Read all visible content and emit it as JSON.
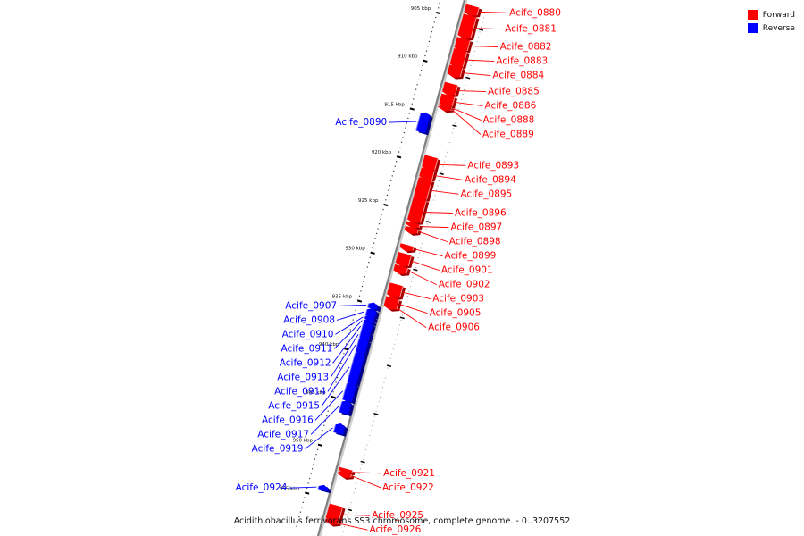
{
  "caption": "Acidithiobacillus ferrivorans SS3 chromosome, complete genome. - 0..3207552",
  "legend": [
    {
      "label": "Forward",
      "color": "#ff0000"
    },
    {
      "label": "Reverse",
      "color": "#0000ff"
    }
  ],
  "colors": {
    "forward": "#ff0000",
    "reverse": "#0000ff",
    "backbone": "#808080"
  },
  "ticks": [
    {
      "kbp": 905,
      "label": "905 kbp"
    },
    {
      "kbp": 910,
      "label": "910 kbp"
    },
    {
      "kbp": 915,
      "label": "915 kbp"
    },
    {
      "kbp": 920,
      "label": "920 kbp"
    },
    {
      "kbp": 925,
      "label": "925 kbp"
    },
    {
      "kbp": 930,
      "label": "930 kbp"
    },
    {
      "kbp": 935,
      "label": "935 kbp"
    },
    {
      "kbp": 940,
      "label": "940 kbp"
    },
    {
      "kbp": 945,
      "label": "945 kbp"
    },
    {
      "kbp": 950,
      "label": "950 kbp"
    },
    {
      "kbp": 955,
      "label": "955 kbp"
    }
  ],
  "genes": [
    {
      "name": "Acife_0880",
      "strand": "forward",
      "start": 903.4,
      "end": 904.2
    },
    {
      "name": "Acife_0881",
      "strand": "forward",
      "start": 904.4,
      "end": 906.6
    },
    {
      "name": "Acife_0882",
      "strand": "forward",
      "start": 906.8,
      "end": 907.9
    },
    {
      "name": "Acife_0883",
      "strand": "forward",
      "start": 908.0,
      "end": 909.6
    },
    {
      "name": "Acife_0884",
      "strand": "forward",
      "start": 909.7,
      "end": 910.6
    },
    {
      "name": "Acife_0885",
      "strand": "forward",
      "start": 911.5,
      "end": 912.5
    },
    {
      "name": "Acife_0886",
      "strand": "forward",
      "start": 912.7,
      "end": 913.7
    },
    {
      "name": "Acife_0888",
      "strand": "forward",
      "start": 913.8,
      "end": 913.9
    },
    {
      "name": "Acife_0889",
      "strand": "forward",
      "start": 914.0,
      "end": 914.1
    },
    {
      "name": "Acife_0890",
      "strand": "reverse",
      "start": 915.2,
      "end": 917.0
    },
    {
      "name": "Acife_0893",
      "strand": "forward",
      "start": 919.1,
      "end": 920.3
    },
    {
      "name": "Acife_0894",
      "strand": "forward",
      "start": 920.4,
      "end": 921.3
    },
    {
      "name": "Acife_0895",
      "strand": "forward",
      "start": 921.4,
      "end": 923.4
    },
    {
      "name": "Acife_0896",
      "strand": "forward",
      "start": 923.5,
      "end": 925.8
    },
    {
      "name": "Acife_0897",
      "strand": "forward",
      "start": 926.0,
      "end": 926.3
    },
    {
      "name": "Acife_0898",
      "strand": "forward",
      "start": 926.5,
      "end": 926.9
    },
    {
      "name": "Acife_0899",
      "strand": "forward",
      "start": 928.3,
      "end": 928.7
    },
    {
      "name": "Acife_0901",
      "strand": "forward",
      "start": 929.2,
      "end": 930.3
    },
    {
      "name": "Acife_0902",
      "strand": "forward",
      "start": 930.5,
      "end": 931.1
    },
    {
      "name": "Acife_0903",
      "strand": "forward",
      "start": 932.4,
      "end": 933.6
    },
    {
      "name": "Acife_0905",
      "strand": "forward",
      "start": 933.8,
      "end": 934.7
    },
    {
      "name": "Acife_0906",
      "strand": "forward",
      "start": 934.7,
      "end": 934.8
    },
    {
      "name": "Acife_0907",
      "strand": "reverse",
      "start": 935.0,
      "end": 935.4
    },
    {
      "name": "Acife_0908",
      "strand": "reverse",
      "start": 935.6,
      "end": 936.2
    },
    {
      "name": "Acife_0910",
      "strand": "reverse",
      "start": 936.3,
      "end": 936.6
    },
    {
      "name": "Acife_0911",
      "strand": "reverse",
      "start": 936.7,
      "end": 936.9
    },
    {
      "name": "Acife_0912",
      "strand": "reverse",
      "start": 937.0,
      "end": 937.8
    },
    {
      "name": "Acife_0913",
      "strand": "reverse",
      "start": 937.9,
      "end": 938.6
    },
    {
      "name": "Acife_0914",
      "strand": "reverse",
      "start": 938.7,
      "end": 940.0
    },
    {
      "name": "Acife_0915",
      "strand": "reverse",
      "start": 940.1,
      "end": 943.2
    },
    {
      "name": "Acife_0916",
      "strand": "reverse",
      "start": 943.3,
      "end": 945.0
    },
    {
      "name": "Acife_0917",
      "strand": "reverse",
      "start": 945.2,
      "end": 946.3
    },
    {
      "name": "Acife_0919",
      "strand": "reverse",
      "start": 947.6,
      "end": 948.4
    },
    {
      "name": "Acife_0921",
      "strand": "forward",
      "start": 951.6,
      "end": 951.9
    },
    {
      "name": "Acife_0922",
      "strand": "forward",
      "start": 952.0,
      "end": 952.3
    },
    {
      "name": "Acife_0924",
      "strand": "reverse",
      "start": 954.0,
      "end": 954.3
    },
    {
      "name": "Acife_0925",
      "strand": "forward",
      "start": 955.4,
      "end": 956.9
    },
    {
      "name": "Acife_0926",
      "strand": "forward",
      "start": 957.0,
      "end": 957.2
    }
  ]
}
